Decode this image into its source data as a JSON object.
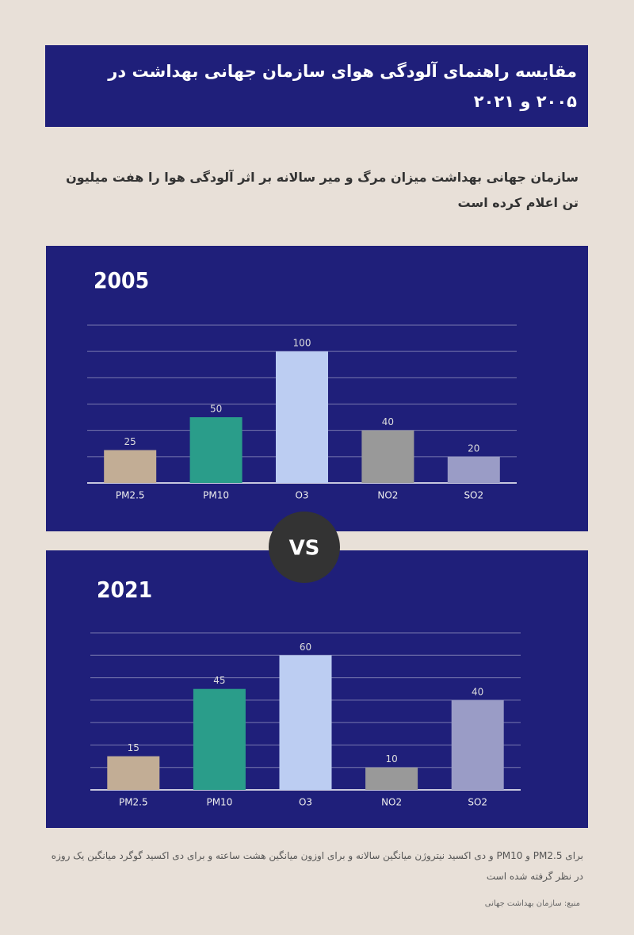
{
  "title": "مقایسه راهنمای آلودگی هوای سازمان جهانی بهداشت در ۲۰۰۵ و ۲۰۲۱",
  "subtitle": "سازمان جهانی بهداشت میزان مرگ و میر سالانه بر اثر آلودگی هوا را هفت میلیون تن اعلام کرده است",
  "vs": "VS",
  "note": "برای PM2.5 و PM10 و دی اکسید نیتروژن میانگین سالانه و برای اوزون میانگین هشت ساعته و برای دی اکسید گوگرد میانگین یک روزه در نظر گرفته شده است",
  "source": "منبع: سازمان بهداشت جهانی",
  "chart_data": [
    {
      "type": "bar",
      "title": "2005",
      "categories": [
        "PM2.5",
        "PM10",
        "O3",
        "NO2",
        "SO2"
      ],
      "values": [
        25,
        50,
        100,
        40,
        20
      ],
      "colors": [
        "#c2ad95",
        "#2a9d8a",
        "#bccdf2",
        "#999999",
        "#9a9cc6"
      ],
      "ylim": [
        0,
        120
      ],
      "yticks": [
        0,
        20,
        40,
        60,
        80,
        100,
        120
      ],
      "grid": true
    },
    {
      "type": "bar",
      "title": "2021",
      "categories": [
        "PM2.5",
        "PM10",
        "O3",
        "NO2",
        "SO2"
      ],
      "values": [
        15,
        45,
        60,
        10,
        40
      ],
      "colors": [
        "#c2ad95",
        "#2a9d8a",
        "#bccdf2",
        "#999999",
        "#9a9cc6"
      ],
      "ylim": [
        0,
        70
      ],
      "yticks": [
        0,
        10,
        20,
        30,
        40,
        50,
        60,
        70
      ],
      "grid": true
    }
  ]
}
